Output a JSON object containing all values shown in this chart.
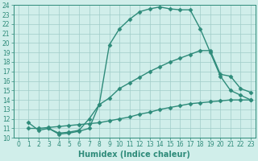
{
  "line1_x": [
    1,
    2,
    3,
    4,
    5,
    6,
    7,
    8,
    9,
    10,
    11,
    12,
    13,
    14,
    15,
    16,
    17,
    18,
    19,
    20,
    21,
    22,
    23
  ],
  "line1_y": [
    11.6,
    10.8,
    11.0,
    10.4,
    10.5,
    10.7,
    11.0,
    13.5,
    19.8,
    21.5,
    22.5,
    23.3,
    23.6,
    23.8,
    23.6,
    23.5,
    23.5,
    21.5,
    19.0,
    16.5,
    15.0,
    14.5,
    14.0
  ],
  "line2_x": [
    3,
    4,
    5,
    6,
    7,
    8,
    9,
    10,
    11,
    12,
    13,
    14,
    15,
    16,
    17,
    18,
    19,
    20,
    21,
    22,
    23
  ],
  "line2_y": [
    11.0,
    10.5,
    10.6,
    10.8,
    12.0,
    13.5,
    14.2,
    15.2,
    15.8,
    16.4,
    17.0,
    17.5,
    18.0,
    18.4,
    18.8,
    19.2,
    19.2,
    16.7,
    16.5,
    15.2,
    14.8
  ],
  "line3_x": [
    1,
    2,
    3,
    4,
    5,
    6,
    7,
    8,
    9,
    10,
    11,
    12,
    13,
    14,
    15,
    16,
    17,
    18,
    19,
    20,
    21,
    22,
    23
  ],
  "line3_y": [
    11.0,
    11.0,
    11.1,
    11.2,
    11.3,
    11.4,
    11.5,
    11.6,
    11.8,
    12.0,
    12.2,
    12.5,
    12.7,
    13.0,
    13.2,
    13.4,
    13.6,
    13.7,
    13.8,
    13.9,
    14.0,
    14.0,
    14.0
  ],
  "line_color": "#2e8b7a",
  "bg_color": "#d0eeea",
  "grid_color": "#a0ccc8",
  "xlabel": "Humidex (Indice chaleur)",
  "xlim": [
    -0.5,
    23.5
  ],
  "ylim": [
    10,
    24
  ],
  "xticks": [
    0,
    1,
    2,
    3,
    4,
    5,
    6,
    7,
    8,
    9,
    10,
    11,
    12,
    13,
    14,
    15,
    16,
    17,
    18,
    19,
    20,
    21,
    22,
    23
  ],
  "yticks": [
    10,
    11,
    12,
    13,
    14,
    15,
    16,
    17,
    18,
    19,
    20,
    21,
    22,
    23,
    24
  ],
  "marker": "D",
  "markersize": 2.5,
  "linewidth": 1.0,
  "xlabel_fontsize": 7,
  "tick_fontsize": 5.5
}
